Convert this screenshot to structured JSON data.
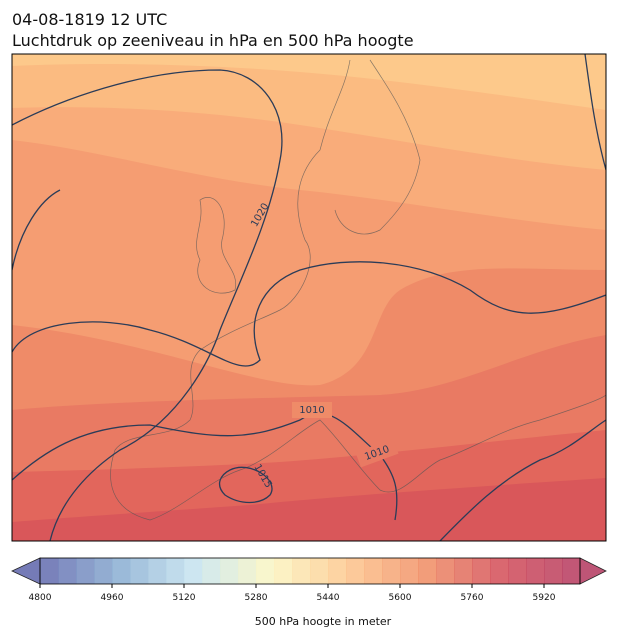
{
  "header": {
    "title": "04-08-1819 12 UTC",
    "subtitle": "Luchtdruk op zeeniveau in hPa en 500 hPa hoogte"
  },
  "map": {
    "contour_labels": [
      "1020",
      "1010",
      "1010",
      "1015"
    ]
  },
  "colorbar": {
    "range": [
      4800,
      6000
    ],
    "step": 40,
    "ticks": [
      4800,
      4960,
      5120,
      5280,
      5440,
      5600,
      5760,
      5920
    ],
    "colormap": [
      "#5e64ab",
      "#86abd0",
      "#c5e3ef",
      "#fbf6c0",
      "#fdc58b",
      "#f08d63",
      "#d34b56",
      "#b3385f"
    ],
    "label": "500 hPa hoogte in meter"
  }
}
